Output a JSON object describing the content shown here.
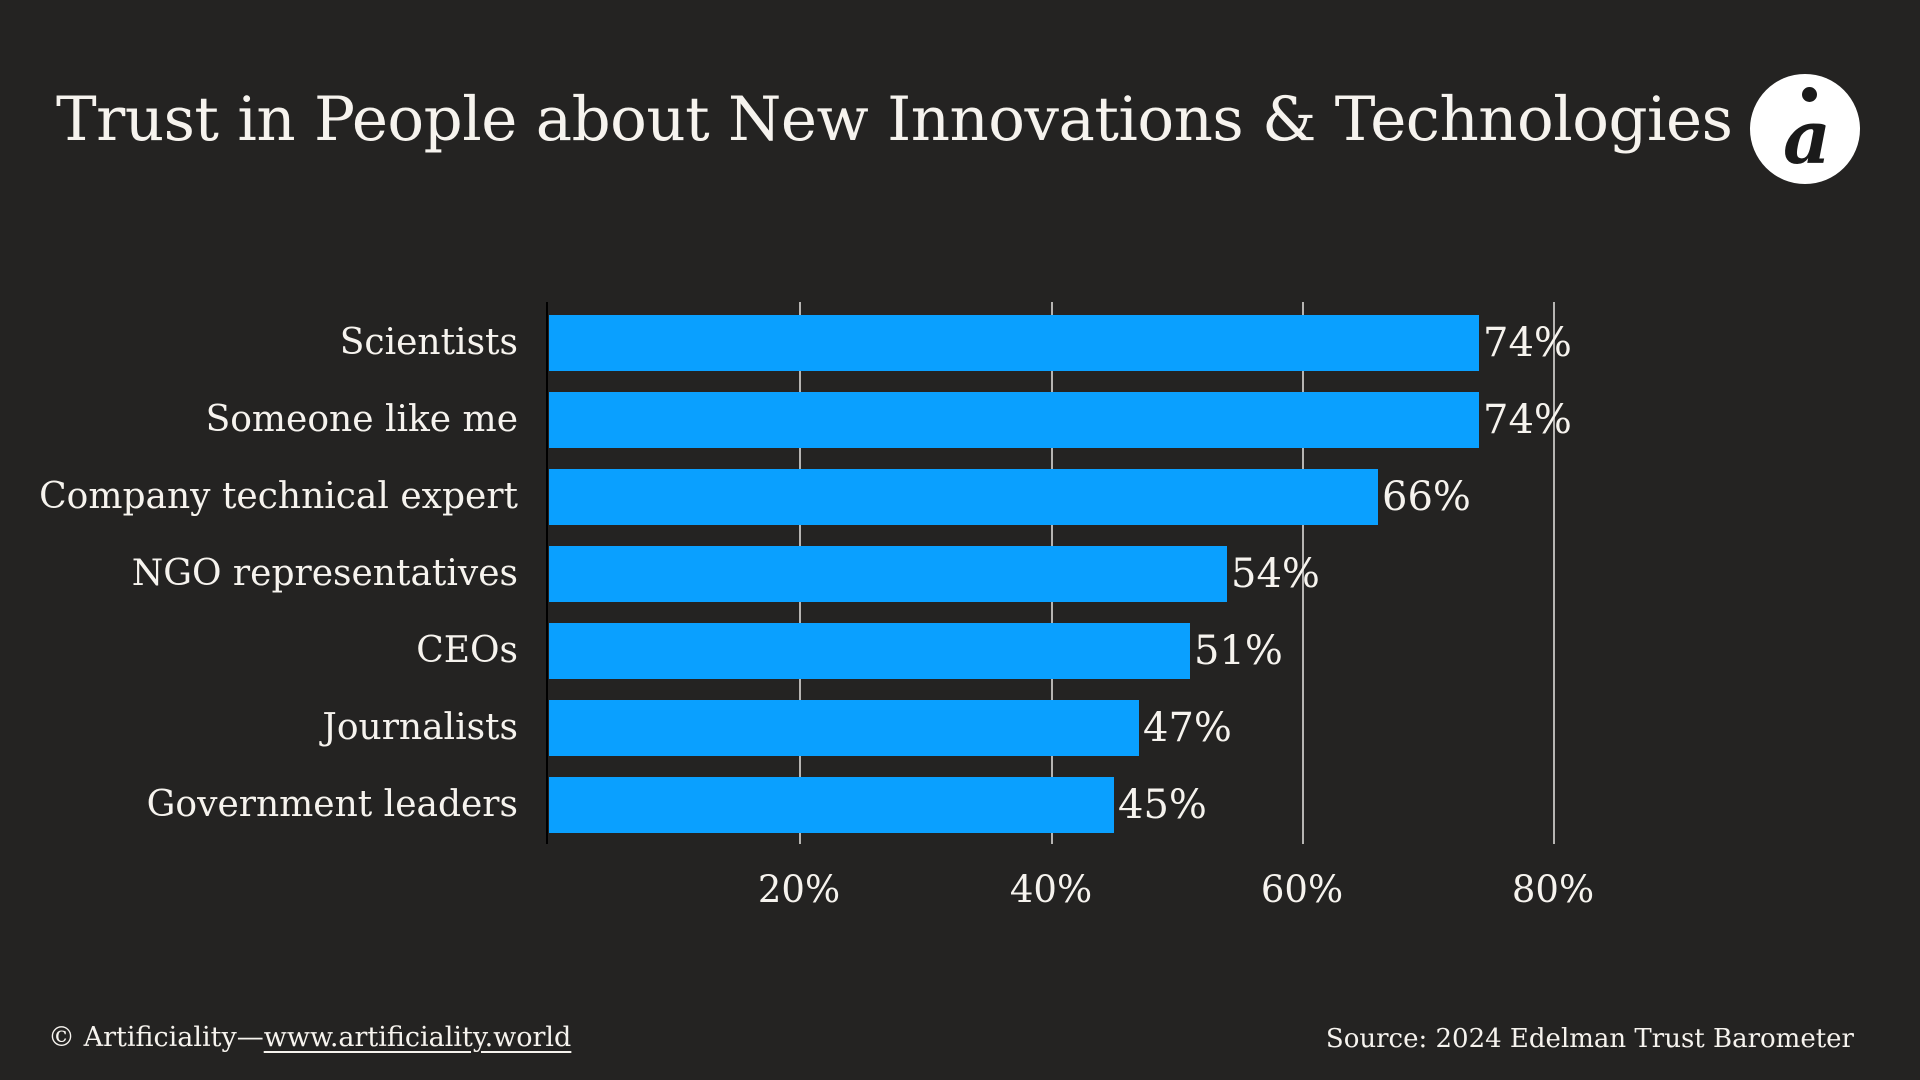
{
  "page": {
    "title": "Trust in People about New Innovations & Technologies",
    "logo": {
      "glyph": "a"
    },
    "footer": {
      "copyright": "© Artificiality—",
      "link": "www.artificiality.world",
      "source": "Source: 2024 Edelman Trust Barometer"
    },
    "colors": {
      "background": "#242322",
      "bar": "#0aa0ff",
      "text": "#f6f3ee",
      "gridline": "#d0cecb",
      "axis_line": "#000000",
      "logo_bg": "#ffffff",
      "logo_fg": "#1a1a1a"
    }
  },
  "chart_data": {
    "type": "bar",
    "orientation": "horizontal",
    "title": "Trust in People about New Innovations & Technologies",
    "categories": [
      "Scientists",
      "Someone like me",
      "Company technical expert",
      "NGO representatives",
      "CEOs",
      "Journalists",
      "Government leaders"
    ],
    "values": [
      74,
      74,
      66,
      54,
      51,
      47,
      45
    ],
    "value_labels": [
      "74%",
      "74%",
      "66%",
      "54%",
      "51%",
      "47%",
      "45%"
    ],
    "value_suffix": "%",
    "x_tick_labels": [
      "20%",
      "40%",
      "60%",
      "80%"
    ],
    "x_tick_values": [
      20,
      40,
      60,
      80
    ],
    "xlim": [
      0,
      88
    ],
    "grid": true,
    "legend": false
  }
}
